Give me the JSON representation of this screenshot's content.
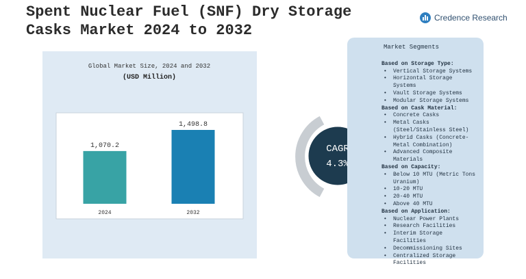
{
  "header": {
    "title": "Spent Nuclear Fuel (SNF) Dry Storage Casks Market 2024 to 2032",
    "brand": "Credence Research"
  },
  "chart_data": {
    "type": "bar",
    "title": "Global Market Size, 2024 and 2032",
    "subtitle": "(USD Million)",
    "categories": [
      "2024",
      "2032"
    ],
    "values": [
      1070.2,
      1498.8
    ],
    "value_labels": [
      "1,070.2",
      "1,498.8"
    ],
    "colors": [
      "#38a3a5",
      "#1a80b3"
    ]
  },
  "cagr": {
    "label": "CAGR",
    "value": "4.3%"
  },
  "segments": {
    "title": "Market Segments",
    "groups": [
      {
        "heading": "Based on Storage Type:",
        "items": [
          "Vertical Storage Systems",
          "Horizontal Storage Systems",
          "Vault Storage Systems",
          "Modular Storage Systems"
        ]
      },
      {
        "heading": "Based on Cask Material:",
        "items": [
          "Concrete Casks",
          "Metal Casks (Steel/Stainless Steel)",
          "Hybrid Casks (Concrete-Metal Combination)",
          "Advanced Composite Materials"
        ]
      },
      {
        "heading": "Based on Capacity:",
        "items": [
          "Below 10 MTU (Metric Tons Uranium)",
          "10-20 MTU",
          "20-40 MTU",
          "Above 40 MTU"
        ]
      },
      {
        "heading": "Based on Application:",
        "items": [
          "Nuclear Power Plants",
          "Research Facilities",
          "Interim Storage Facilities",
          "Decommissioning Sites",
          "Centralized Storage Facilities"
        ]
      }
    ]
  }
}
